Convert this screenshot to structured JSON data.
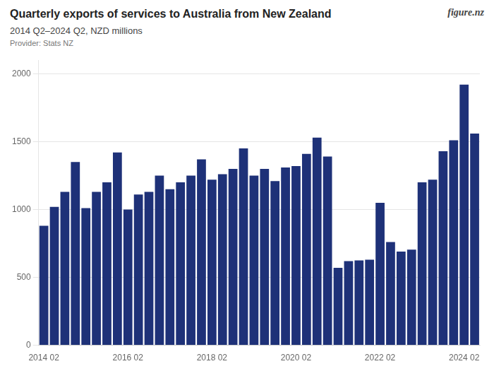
{
  "chart_data": {
    "type": "bar",
    "title": "Quarterly exports of services to Australia from New Zealand",
    "subtitle": "2014 Q2–2024 Q2, NZD millions",
    "annotations": [
      "Provider: Stats NZ",
      "figure.nz"
    ],
    "categories": [
      "2014 02",
      null,
      null,
      null,
      null,
      null,
      null,
      null,
      "2016 02",
      null,
      null,
      null,
      null,
      null,
      null,
      null,
      "2018 02",
      null,
      null,
      null,
      null,
      null,
      null,
      null,
      "2020 02",
      null,
      null,
      null,
      null,
      null,
      null,
      null,
      "2022 02",
      null,
      null,
      null,
      null,
      null,
      null,
      null,
      "2024 02",
      null
    ],
    "values": [
      880,
      1020,
      1130,
      1350,
      1010,
      1130,
      1200,
      1420,
      1000,
      1110,
      1130,
      1250,
      1150,
      1200,
      1250,
      1370,
      1220,
      1260,
      1300,
      1450,
      1250,
      1300,
      1210,
      1310,
      1320,
      1410,
      1530,
      1390,
      570,
      620,
      625,
      630,
      1050,
      760,
      690,
      705,
      1200,
      1220,
      1430,
      1510,
      1920,
      1560
    ],
    "color": "#1e3178",
    "ylim": [
      0,
      2100
    ],
    "yticks": [
      0,
      500,
      1000,
      1500,
      2000
    ],
    "grid": true
  }
}
